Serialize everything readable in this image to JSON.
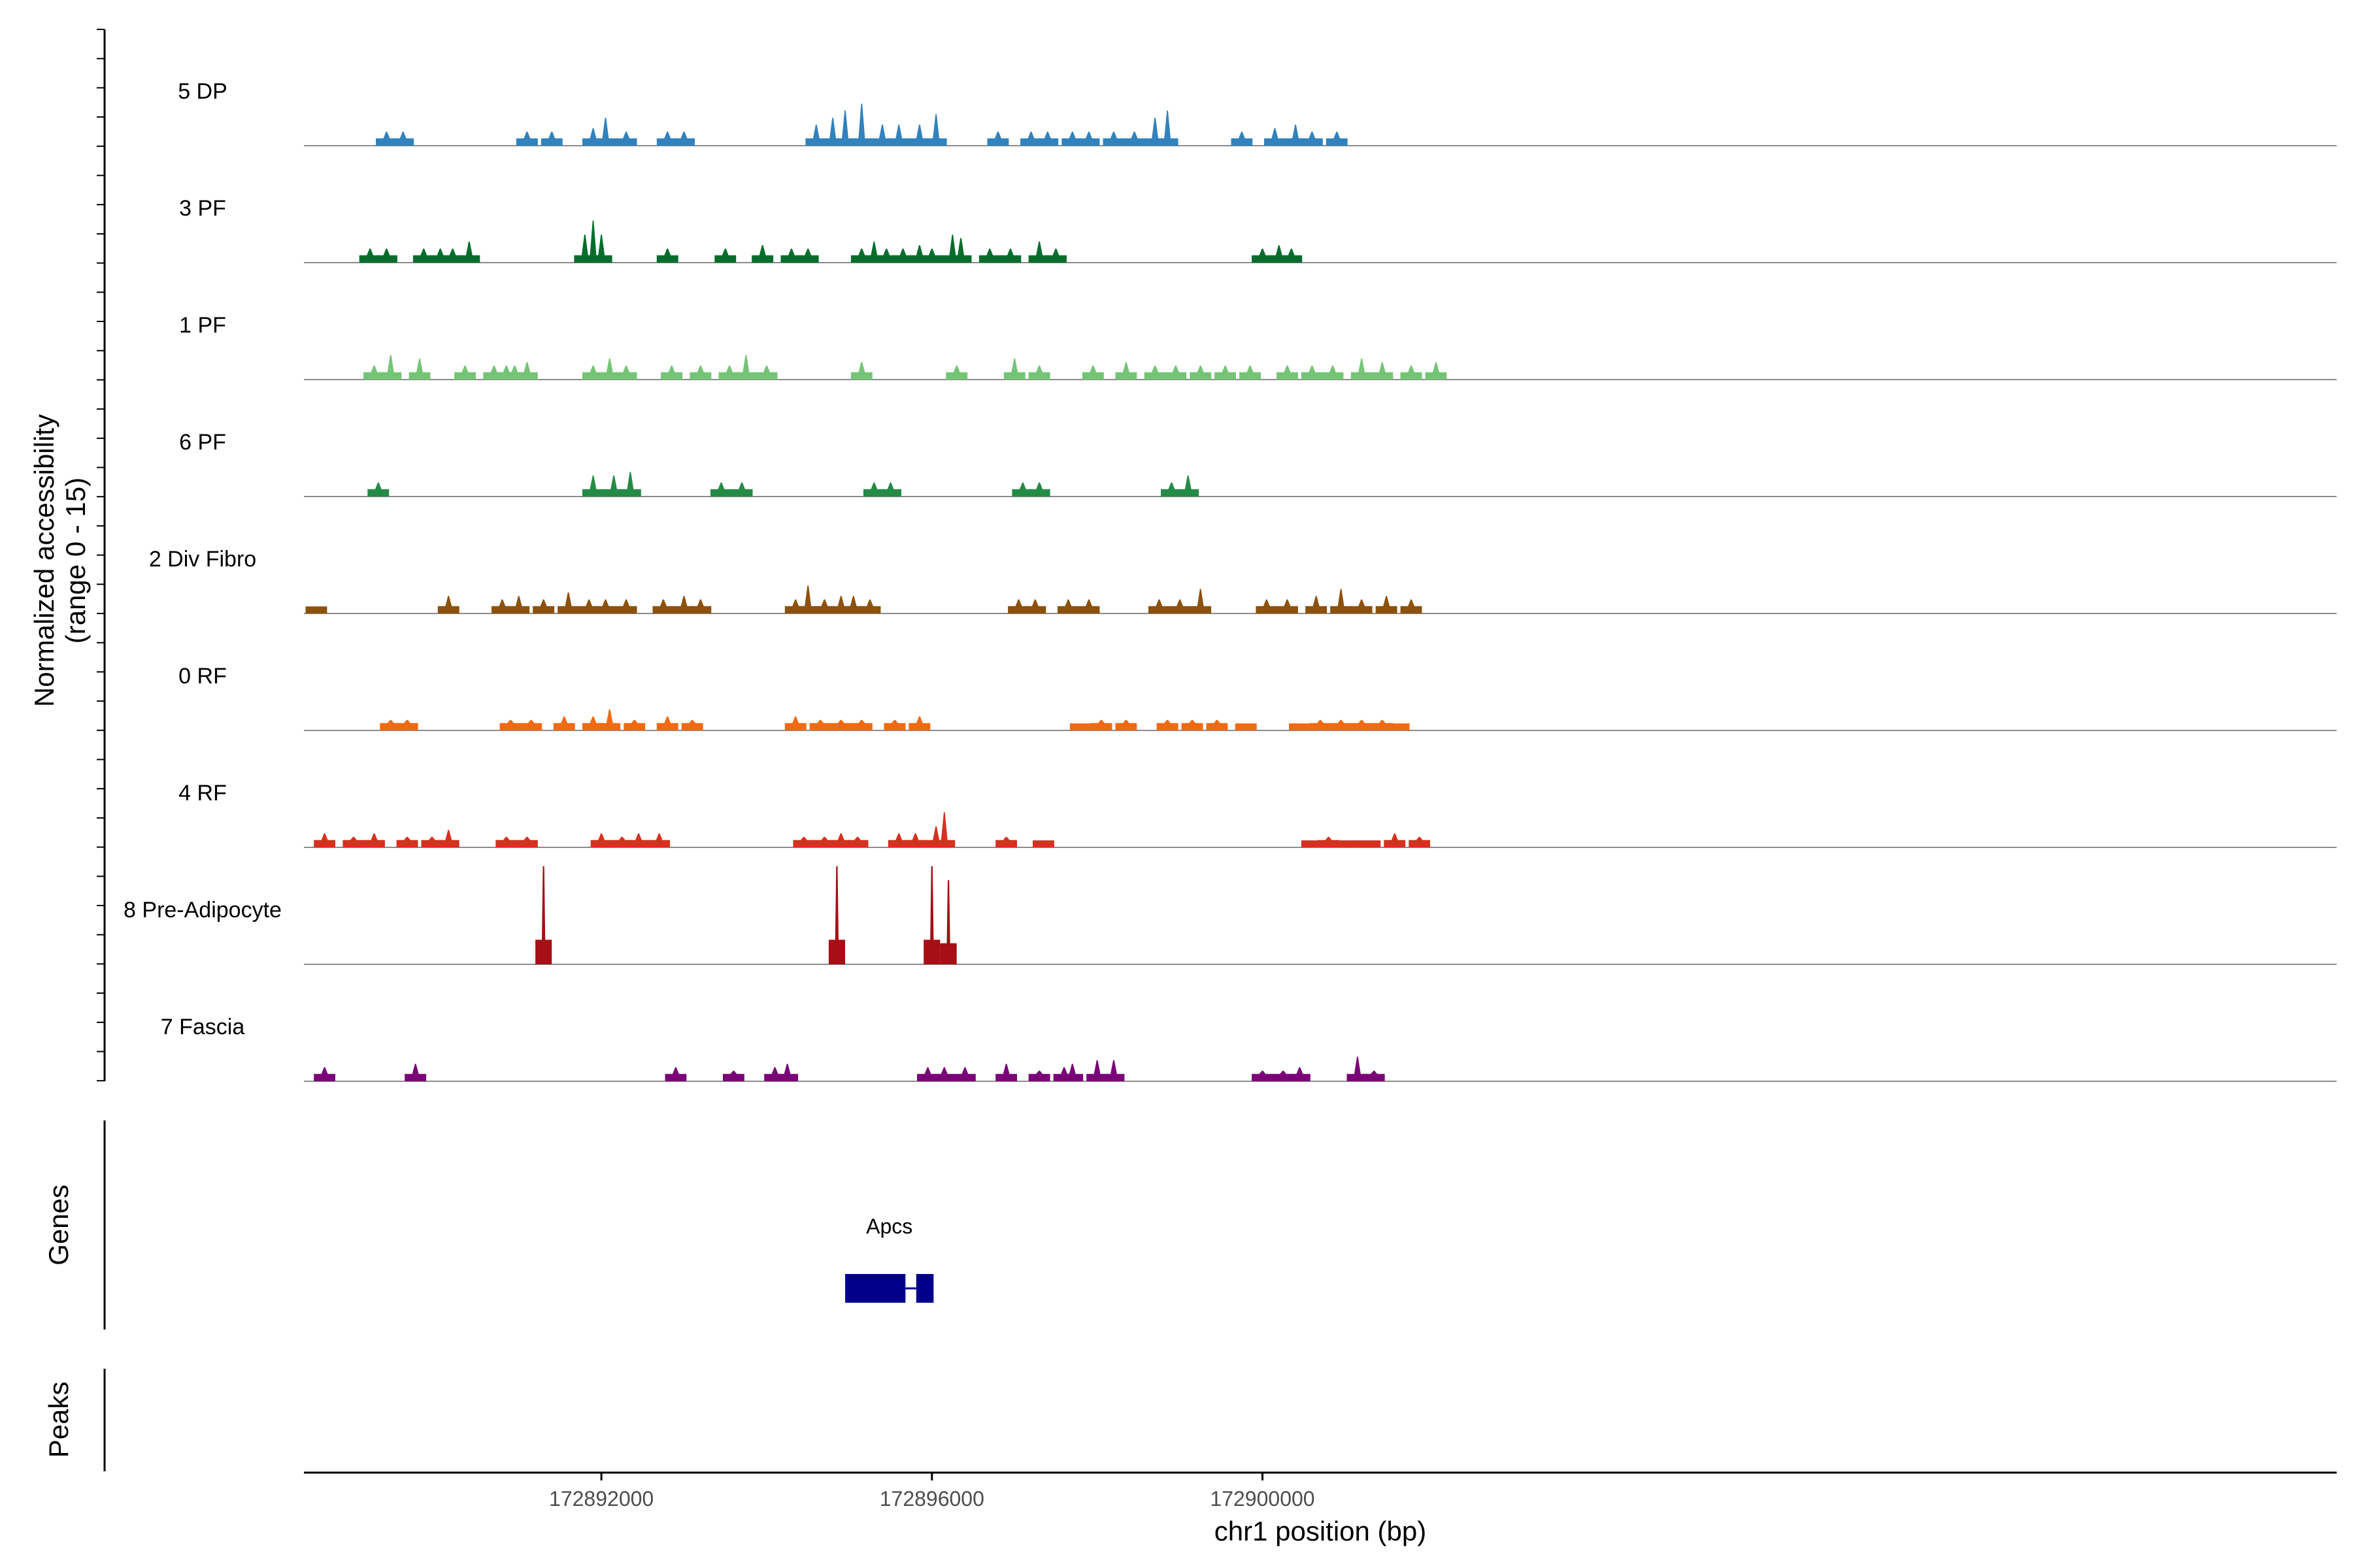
{
  "chart_data": {
    "type": "area",
    "title": "",
    "xlabel": "chr1 position (bp)",
    "ylabel": "Normalized accessibility\n(range 0 - 15)",
    "ylim": [
      0,
      15
    ],
    "xlim": [
      172888400,
      172913000
    ],
    "xticks": [
      172892000,
      172896000,
      172900000
    ],
    "xtick_labels": [
      "172892000",
      "172896000",
      "172900000"
    ],
    "grid": false,
    "legend": "none",
    "panel_labels": {
      "genes": "Genes",
      "peaks": "Peaks"
    },
    "genes": [
      {
        "name": "Apcs",
        "exons": [
          [
            172894950,
            172895680
          ],
          [
            172895810,
            172896020
          ]
        ],
        "intron": [
          172895680,
          172895810
        ],
        "color": "#00008B"
      }
    ],
    "series": [
      {
        "name": "5 DP",
        "color": "#3182BD",
        "peaks": [
          [
            172889400,
            2
          ],
          [
            172889600,
            2
          ],
          [
            172891100,
            2
          ],
          [
            172891400,
            2
          ],
          [
            172891900,
            2.5
          ],
          [
            172892050,
            4
          ],
          [
            172892300,
            2
          ],
          [
            172892800,
            2
          ],
          [
            172893000,
            2
          ],
          [
            172894600,
            3
          ],
          [
            172894800,
            4
          ],
          [
            172894950,
            5
          ],
          [
            172895150,
            6
          ],
          [
            172895400,
            3
          ],
          [
            172895600,
            3
          ],
          [
            172895850,
            3
          ],
          [
            172896050,
            4.5
          ],
          [
            172896800,
            2
          ],
          [
            172897200,
            2
          ],
          [
            172897400,
            2
          ],
          [
            172897700,
            2
          ],
          [
            172897900,
            2
          ],
          [
            172898200,
            2
          ],
          [
            172898450,
            2
          ],
          [
            172898700,
            4
          ],
          [
            172898850,
            5
          ],
          [
            172899750,
            2
          ],
          [
            172900150,
            2.5
          ],
          [
            172900400,
            3
          ],
          [
            172900600,
            2
          ],
          [
            172900900,
            2
          ]
        ]
      },
      {
        "name": "3 PF",
        "color": "#006D2C",
        "peaks": [
          [
            172889200,
            2
          ],
          [
            172889400,
            2
          ],
          [
            172889850,
            2
          ],
          [
            172890050,
            2
          ],
          [
            172890200,
            2
          ],
          [
            172890400,
            3
          ],
          [
            172891800,
            4
          ],
          [
            172891900,
            6
          ],
          [
            172892000,
            4
          ],
          [
            172892800,
            2
          ],
          [
            172893500,
            2
          ],
          [
            172893950,
            2.5
          ],
          [
            172894300,
            2
          ],
          [
            172894500,
            2
          ],
          [
            172895150,
            2
          ],
          [
            172895300,
            3
          ],
          [
            172895450,
            2
          ],
          [
            172895650,
            2
          ],
          [
            172895850,
            2.5
          ],
          [
            172896000,
            2
          ],
          [
            172896250,
            4
          ],
          [
            172896350,
            3.5
          ],
          [
            172896700,
            2
          ],
          [
            172896950,
            2
          ],
          [
            172897300,
            3
          ],
          [
            172897500,
            2
          ],
          [
            172900000,
            2
          ],
          [
            172900200,
            2.5
          ],
          [
            172900350,
            2
          ]
        ]
      },
      {
        "name": "1 PF",
        "color": "#74C476",
        "peaks": [
          [
            172889250,
            2
          ],
          [
            172889450,
            3.5
          ],
          [
            172889800,
            3
          ],
          [
            172890350,
            2
          ],
          [
            172890700,
            2
          ],
          [
            172890850,
            2
          ],
          [
            172890950,
            2
          ],
          [
            172891100,
            2.5
          ],
          [
            172891900,
            2
          ],
          [
            172892100,
            3
          ],
          [
            172892300,
            2
          ],
          [
            172892850,
            2
          ],
          [
            172893200,
            2
          ],
          [
            172893550,
            2
          ],
          [
            172893750,
            3.5
          ],
          [
            172894000,
            2
          ],
          [
            172895150,
            2.5
          ],
          [
            172896300,
            2
          ],
          [
            172897000,
            3
          ],
          [
            172897300,
            2
          ],
          [
            172897950,
            2
          ],
          [
            172898350,
            2.5
          ],
          [
            172898700,
            2
          ],
          [
            172898950,
            2
          ],
          [
            172899250,
            2
          ],
          [
            172899550,
            2
          ],
          [
            172899850,
            2
          ],
          [
            172900300,
            2
          ],
          [
            172900600,
            2
          ],
          [
            172900850,
            2
          ],
          [
            172901200,
            3
          ],
          [
            172901450,
            2.5
          ],
          [
            172901800,
            2
          ],
          [
            172902100,
            2.5
          ]
        ]
      },
      {
        "name": "6 PF",
        "color": "#238B45",
        "peaks": [
          [
            172889300,
            2
          ],
          [
            172891900,
            3
          ],
          [
            172892150,
            3
          ],
          [
            172892350,
            3.5
          ],
          [
            172893450,
            2
          ],
          [
            172893700,
            2
          ],
          [
            172895300,
            2
          ],
          [
            172895500,
            2
          ],
          [
            172897100,
            2
          ],
          [
            172897300,
            2
          ],
          [
            172898900,
            2
          ],
          [
            172899100,
            3
          ]
        ]
      },
      {
        "name": "2 Div Fibro",
        "color": "#8C510A",
        "peaks": [
          [
            172888550,
            1
          ],
          [
            172890150,
            2.5
          ],
          [
            172890800,
            2
          ],
          [
            172891000,
            2.5
          ],
          [
            172891300,
            2
          ],
          [
            172891600,
            3
          ],
          [
            172891850,
            2
          ],
          [
            172892050,
            2
          ],
          [
            172892300,
            2
          ],
          [
            172892750,
            2
          ],
          [
            172893000,
            2.5
          ],
          [
            172893200,
            2
          ],
          [
            172894350,
            2
          ],
          [
            172894500,
            4
          ],
          [
            172894700,
            2
          ],
          [
            172894900,
            2.5
          ],
          [
            172895050,
            2.5
          ],
          [
            172895250,
            2
          ],
          [
            172897050,
            2
          ],
          [
            172897250,
            2
          ],
          [
            172897650,
            2
          ],
          [
            172897900,
            2
          ],
          [
            172898750,
            2
          ],
          [
            172899000,
            2
          ],
          [
            172899250,
            3.5
          ],
          [
            172900050,
            2
          ],
          [
            172900300,
            2
          ],
          [
            172900650,
            2.5
          ],
          [
            172900950,
            3.5
          ],
          [
            172901200,
            2
          ],
          [
            172901500,
            2.5
          ],
          [
            172901800,
            2
          ]
        ]
      },
      {
        "name": "0 RF",
        "color": "#F16913",
        "peaks": [
          [
            172889450,
            1.5
          ],
          [
            172889650,
            1.5
          ],
          [
            172890900,
            1.5
          ],
          [
            172891150,
            1.5
          ],
          [
            172891550,
            2
          ],
          [
            172891900,
            2
          ],
          [
            172892100,
            3
          ],
          [
            172892400,
            1.5
          ],
          [
            172892800,
            2
          ],
          [
            172893100,
            1.5
          ],
          [
            172894350,
            2
          ],
          [
            172894650,
            1.5
          ],
          [
            172894900,
            1.5
          ],
          [
            172895150,
            1.5
          ],
          [
            172895550,
            1.5
          ],
          [
            172895850,
            2
          ],
          [
            172897800,
            1
          ],
          [
            172898050,
            1.5
          ],
          [
            172898350,
            1.5
          ],
          [
            172898850,
            1.5
          ],
          [
            172899150,
            1.5
          ],
          [
            172899450,
            1.5
          ],
          [
            172899800,
            1
          ],
          [
            172900450,
            1
          ],
          [
            172900700,
            1.5
          ],
          [
            172900950,
            1.5
          ],
          [
            172901200,
            1.5
          ],
          [
            172901450,
            1.5
          ],
          [
            172901650,
            1
          ]
        ]
      },
      {
        "name": "4 RF",
        "color": "#D7301F",
        "peaks": [
          [
            172888650,
            2
          ],
          [
            172889000,
            1.5
          ],
          [
            172889250,
            2
          ],
          [
            172889650,
            1.5
          ],
          [
            172889950,
            1.5
          ],
          [
            172890150,
            2.5
          ],
          [
            172890850,
            1.5
          ],
          [
            172891100,
            1.5
          ],
          [
            172892000,
            2
          ],
          [
            172892250,
            1.5
          ],
          [
            172892450,
            2
          ],
          [
            172892700,
            2
          ],
          [
            172894450,
            1.5
          ],
          [
            172894700,
            1.5
          ],
          [
            172894900,
            2
          ],
          [
            172895100,
            1.5
          ],
          [
            172895600,
            2
          ],
          [
            172895800,
            2
          ],
          [
            172896050,
            3
          ],
          [
            172896150,
            5
          ],
          [
            172896900,
            1.5
          ],
          [
            172897350,
            1
          ],
          [
            172900600,
            1
          ],
          [
            172900800,
            1.5
          ],
          [
            172901050,
            1
          ],
          [
            172901300,
            1
          ],
          [
            172901600,
            2
          ],
          [
            172901900,
            1.5
          ]
        ]
      },
      {
        "name": "8 Pre-Adipocyte",
        "color": "#A50F15",
        "peaks": [
          [
            172891300,
            14
          ],
          [
            172894850,
            14
          ],
          [
            172896000,
            14
          ],
          [
            172896200,
            12
          ]
        ]
      },
      {
        "name": "7 Fascia",
        "color": "#7A0177",
        "peaks": [
          [
            172888650,
            2
          ],
          [
            172889750,
            2.5
          ],
          [
            172892900,
            2
          ],
          [
            172893600,
            1.5
          ],
          [
            172894100,
            2
          ],
          [
            172894250,
            2.5
          ],
          [
            172895950,
            2
          ],
          [
            172896150,
            2
          ],
          [
            172896400,
            2
          ],
          [
            172896900,
            2.5
          ],
          [
            172897300,
            1.5
          ],
          [
            172897600,
            2
          ],
          [
            172897700,
            2.5
          ],
          [
            172898000,
            3
          ],
          [
            172898200,
            3
          ],
          [
            172900000,
            1.5
          ],
          [
            172900250,
            1.5
          ],
          [
            172900450,
            2
          ],
          [
            172901150,
            3.5
          ],
          [
            172901350,
            1.5
          ]
        ]
      }
    ]
  }
}
